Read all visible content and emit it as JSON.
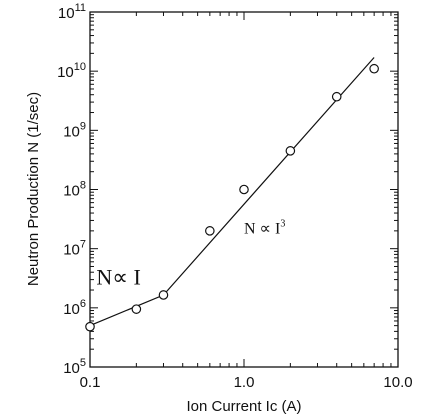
{
  "chart_data": {
    "type": "scatter",
    "title": "",
    "xlabel": "Ion Current Ic (A)",
    "ylabel": "Neutron Production N (1/sec)",
    "xscale": "log",
    "yscale": "log",
    "xlim": [
      0.1,
      10.0
    ],
    "ylim": [
      100000,
      100000000000
    ],
    "x_tick_labels": [
      "0.1",
      "1.0",
      "10.0"
    ],
    "x_tick_values": [
      0.1,
      1.0,
      10.0
    ],
    "y_tick_base": "10",
    "y_tick_exponents": [
      "5",
      "6",
      "7",
      "8",
      "9",
      "10",
      "11"
    ],
    "grid": false,
    "legend": "none",
    "series": [
      {
        "marker": "open-circle",
        "points": [
          {
            "x": 0.1,
            "y": 480000
          },
          {
            "x": 0.2,
            "y": 950000
          },
          {
            "x": 0.3,
            "y": 1650000
          },
          {
            "x": 0.6,
            "y": 20000000
          },
          {
            "x": 1.0,
            "y": 100000000
          },
          {
            "x": 2.0,
            "y": 450000000
          },
          {
            "x": 4.0,
            "y": 3700000000
          },
          {
            "x": 7.0,
            "y": 11000000000
          }
        ]
      },
      {
        "style": "line",
        "points": [
          {
            "x": 0.1,
            "y": 500000
          },
          {
            "x": 0.3,
            "y": 1650000
          },
          {
            "x": 7.0,
            "y": 17000000000
          }
        ]
      }
    ],
    "annotations": [
      {
        "text": "N∝ I",
        "x": 0.11,
        "y": 2500000
      },
      {
        "text": "N ∝ I",
        "sup": "3",
        "x": 1.0,
        "y": 18000000
      }
    ]
  }
}
